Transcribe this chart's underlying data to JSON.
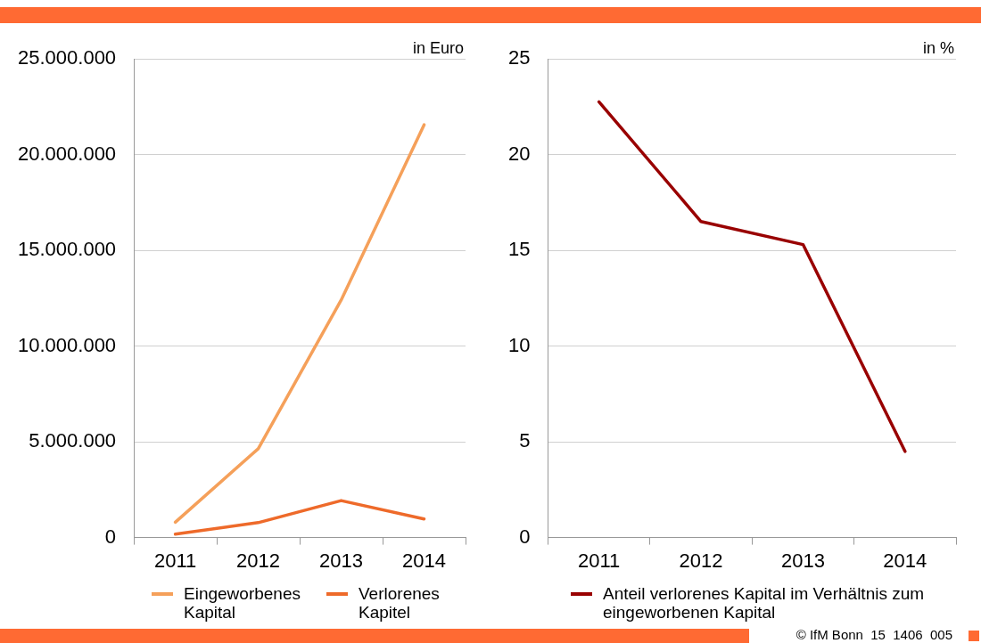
{
  "chart_data": [
    {
      "type": "line",
      "ylabel": "in Euro",
      "categories": [
        "2011",
        "2012",
        "2013",
        "2014"
      ],
      "series": [
        {
          "name": "Eingeworbenes Kapital",
          "color": "#f5a05a",
          "values": [
            800000,
            4640000,
            12400000,
            21550000
          ]
        },
        {
          "name": "Verlorenes Kapitel",
          "color": "#ee6a2a",
          "values": [
            180000,
            780000,
            1930000,
            970000
          ]
        }
      ],
      "ylim": [
        0,
        25000000
      ],
      "yticks": [
        {
          "value": 0,
          "label": "0"
        },
        {
          "value": 5000000,
          "label": "5.000.000"
        },
        {
          "value": 10000000,
          "label": "10.000.000"
        },
        {
          "value": 15000000,
          "label": "15.000.000"
        },
        {
          "value": 20000000,
          "label": "20.000.000"
        },
        {
          "value": 25000000,
          "label": "25.000.000"
        }
      ],
      "grid": "y",
      "legend": "bottom",
      "marker": "none",
      "line_style": "solid"
    },
    {
      "type": "line",
      "ylabel": "in %",
      "categories": [
        "2011",
        "2012",
        "2013",
        "2014"
      ],
      "series": [
        {
          "name": "Anteil verlorenes Kapital im Verhältnis zum eingeworbenen Kapital",
          "color": "#990000",
          "values": [
            22.75,
            16.5,
            15.3,
            4.5
          ]
        }
      ],
      "ylim": [
        0,
        25
      ],
      "yticks": [
        0,
        5,
        10,
        15,
        20,
        25
      ],
      "grid": "y",
      "legend": "bottom",
      "marker": "none",
      "line_style": "solid",
      "annotations": [
        "© IfM Bonn  15  1406  005"
      ]
    }
  ]
}
